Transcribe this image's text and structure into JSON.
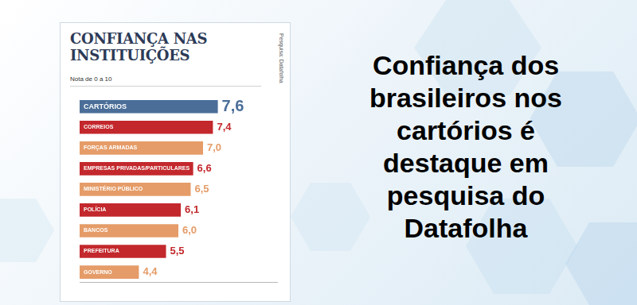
{
  "headline": "Confiança dos brasileiros nos cartórios é destaque em pesquisa do Datafolha",
  "chart_data": {
    "type": "bar",
    "title": "CONFIANÇA NAS INSTITUIÇÕES",
    "subtitle": "Nota de 0 a 10",
    "annotations": [
      "Pesquisa: Datafolha"
    ],
    "orientation": "horizontal",
    "categories": [
      "CARTÓRIOS",
      "CORREIOS",
      "FORÇAS ARMADAS",
      "EMPRESAS PRIVADAS/PARTICULARES",
      "MINISTÉRIO PÚBLICO",
      "POLÍCIA",
      "BANCOS",
      "PREFEITURA",
      "GOVERNO"
    ],
    "values": [
      7.6,
      7.4,
      7.0,
      6.6,
      6.5,
      6.1,
      6.0,
      5.5,
      4.4
    ],
    "value_labels": [
      "7,6",
      "7,4",
      "7,0",
      "6,6",
      "6,5",
      "6,1",
      "6,0",
      "5,5",
      "4,4"
    ],
    "colors": [
      "#4a6e98",
      "#c3282c",
      "#e59c68",
      "#c3282c",
      "#e59c68",
      "#c3282c",
      "#e59c68",
      "#c3282c",
      "#e59c68"
    ],
    "xlim": [
      2,
      10
    ],
    "grid": false,
    "data_labels": true,
    "tick_labels": "y"
  }
}
